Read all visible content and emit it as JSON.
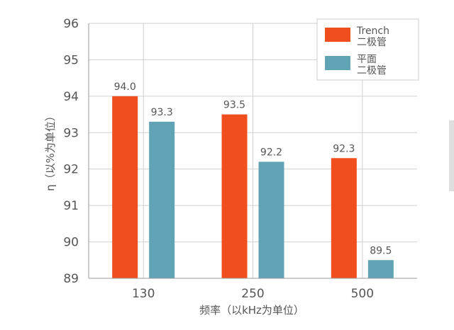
{
  "chart_data": {
    "type": "bar",
    "categories": [
      "130",
      "250",
      "500"
    ],
    "series": [
      {
        "name": "Trench\n二极管",
        "color": "#f04e1e",
        "values": [
          94.0,
          93.5,
          92.3
        ]
      },
      {
        "name": "平面\n二极管",
        "color": "#5fa3b5",
        "values": [
          93.3,
          92.2,
          89.5
        ]
      }
    ],
    "value_labels": [
      [
        "94.0",
        "93.5",
        "92.3"
      ],
      [
        "93.3",
        "92.2",
        "89.5"
      ]
    ],
    "title": "",
    "xlabel": "频率（以kHz为单位）",
    "ylabel": "η（以%为单位）",
    "ylim": [
      89,
      96
    ],
    "yticks": [
      89,
      90,
      91,
      92,
      93,
      94,
      95,
      96
    ],
    "grid": true,
    "legend_position": "top-right"
  }
}
